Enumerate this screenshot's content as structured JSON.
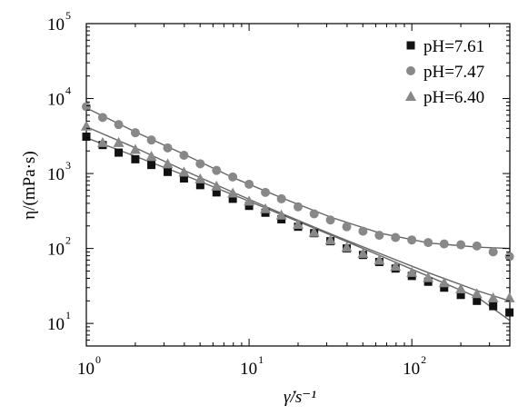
{
  "chart_data": {
    "type": "scatter",
    "x_scale": "log",
    "y_scale": "log",
    "xlim": [
      1,
      400
    ],
    "ylim": [
      5,
      100000
    ],
    "xlabel": "γ̇/s⁻¹",
    "ylabel": "η/(mPa·s)",
    "x_ticks": [
      {
        "value": 1,
        "base": "10",
        "exp": "0"
      },
      {
        "value": 10,
        "base": "10",
        "exp": "1"
      },
      {
        "value": 100,
        "base": "10",
        "exp": "2"
      }
    ],
    "y_ticks": [
      {
        "value": 10,
        "base": "10",
        "exp": "1"
      },
      {
        "value": 100,
        "base": "10",
        "exp": "2"
      },
      {
        "value": 1000,
        "base": "10",
        "exp": "3"
      },
      {
        "value": 10000,
        "base": "10",
        "exp": "4"
      },
      {
        "value": 100000,
        "base": "10",
        "exp": "5"
      }
    ],
    "grid": false,
    "legend_position": "top-right",
    "series": [
      {
        "name": "pH=7.61",
        "marker": "square",
        "color": "#111111",
        "x": [
          1.0,
          1.26,
          1.58,
          2.0,
          2.51,
          3.16,
          3.98,
          5.01,
          6.31,
          7.94,
          10.0,
          12.6,
          15.8,
          20.0,
          25.1,
          31.6,
          39.8,
          50.1,
          63.1,
          79.4,
          100,
          126,
          158,
          200,
          251,
          316,
          398
        ],
        "y": [
          3100,
          2400,
          1900,
          1550,
          1300,
          1050,
          860,
          700,
          560,
          460,
          370,
          300,
          245,
          195,
          160,
          125,
          100,
          82,
          66,
          54,
          43,
          36,
          30,
          24,
          20,
          17,
          14
        ]
      },
      {
        "name": "pH=7.47",
        "marker": "circle",
        "color": "#888888",
        "x": [
          1.0,
          1.26,
          1.58,
          2.0,
          2.51,
          3.16,
          3.98,
          5.01,
          6.31,
          7.94,
          10.0,
          12.6,
          15.8,
          20.0,
          25.1,
          31.6,
          39.8,
          50.1,
          63.1,
          79.4,
          100,
          126,
          158,
          200,
          251,
          316,
          398
        ],
        "y": [
          7800,
          5600,
          4500,
          3500,
          2800,
          2200,
          1750,
          1350,
          1100,
          900,
          720,
          560,
          460,
          360,
          290,
          240,
          195,
          170,
          150,
          140,
          130,
          120,
          115,
          112,
          108,
          90,
          78
        ]
      },
      {
        "name": "pH=6.40",
        "marker": "triangle",
        "color": "#888888",
        "x": [
          1.0,
          1.26,
          1.58,
          2.0,
          2.51,
          3.16,
          3.98,
          5.01,
          6.31,
          7.94,
          10.0,
          12.6,
          15.8,
          20.0,
          25.1,
          31.6,
          39.8,
          50.1,
          63.1,
          79.4,
          100,
          126,
          158,
          200,
          251,
          316,
          398
        ],
        "y": [
          4300,
          2600,
          2600,
          2100,
          1700,
          1350,
          1050,
          850,
          680,
          550,
          430,
          340,
          280,
          210,
          165,
          130,
          104,
          86,
          70,
          58,
          48,
          41,
          35,
          29,
          25,
          22,
          22
        ]
      }
    ],
    "fit_curves": [
      {
        "color": "#666666",
        "x": [
          1,
          2,
          4,
          8,
          16,
          32,
          64,
          128,
          256,
          398
        ],
        "y": [
          3000,
          1700,
          950,
          520,
          280,
          150,
          80,
          42,
          22,
          11
        ]
      },
      {
        "color": "#666666",
        "x": [
          1,
          2,
          4,
          8,
          16,
          32,
          64,
          128,
          256,
          398
        ],
        "y": [
          4200,
          2200,
          1100,
          560,
          290,
          155,
          85,
          47,
          27,
          20
        ]
      },
      {
        "color": "#666666",
        "x": [
          1,
          2,
          4,
          8,
          16,
          32,
          64,
          128,
          256,
          398
        ],
        "y": [
          7500,
          3600,
          1800,
          880,
          470,
          260,
          160,
          118,
          104,
          100
        ]
      }
    ]
  }
}
